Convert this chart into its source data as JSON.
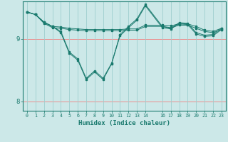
{
  "xlabel": "Humidex (Indice chaleur)",
  "background_color": "#cce8e8",
  "grid_color_h": "#f08080",
  "grid_color_v": "#9ecece",
  "line_color": "#1a7a6e",
  "xlim": [
    -0.5,
    23.5
  ],
  "ylim": [
    7.85,
    9.6
  ],
  "xtick_vals": [
    0,
    1,
    2,
    3,
    4,
    5,
    6,
    7,
    8,
    9,
    10,
    11,
    12,
    13,
    14,
    16,
    17,
    18,
    19,
    20,
    21,
    22,
    23
  ],
  "ytick_vals": [
    8,
    9
  ],
  "line1_x": [
    0,
    1,
    2,
    3,
    4,
    5,
    6,
    7,
    8,
    9,
    10,
    11,
    12,
    13,
    14,
    16,
    17,
    18,
    19,
    20,
    21,
    22,
    23
  ],
  "line1_y": [
    9.43,
    9.39,
    9.25,
    9.18,
    9.17,
    9.15,
    9.14,
    9.13,
    9.13,
    9.13,
    9.13,
    9.13,
    9.14,
    9.14,
    9.2,
    9.2,
    9.18,
    9.22,
    9.22,
    9.17,
    9.12,
    9.1,
    9.15
  ],
  "line2_x": [
    0,
    1,
    2,
    3,
    4,
    5,
    6,
    7,
    8,
    9,
    10,
    11,
    12,
    13,
    14,
    16,
    17,
    18,
    19,
    20,
    21,
    22,
    23
  ],
  "line2_y": [
    9.43,
    9.39,
    9.26,
    9.2,
    9.19,
    9.17,
    9.16,
    9.15,
    9.15,
    9.15,
    9.15,
    9.15,
    9.16,
    9.16,
    9.22,
    9.22,
    9.21,
    9.24,
    9.24,
    9.2,
    9.14,
    9.12,
    9.17
  ],
  "line3_x": [
    0,
    1,
    2,
    3,
    4,
    5,
    6,
    7,
    8,
    9,
    10,
    11,
    12,
    13,
    14,
    16,
    17,
    18,
    19,
    20,
    21,
    22,
    23
  ],
  "line3_y": [
    9.43,
    9.39,
    9.27,
    9.2,
    9.1,
    8.77,
    8.66,
    8.35,
    8.47,
    8.35,
    8.6,
    9.05,
    9.18,
    9.3,
    9.53,
    9.18,
    9.16,
    9.24,
    9.23,
    9.08,
    9.04,
    9.05,
    9.15
  ],
  "line4_x": [
    0,
    1,
    2,
    3,
    4,
    5,
    6,
    7,
    8,
    9,
    10,
    11,
    12,
    13,
    14,
    16,
    17,
    18,
    19,
    20,
    21,
    22,
    23
  ],
  "line4_y": [
    9.43,
    9.39,
    9.27,
    9.2,
    9.12,
    8.79,
    8.68,
    8.37,
    8.49,
    8.37,
    8.61,
    9.07,
    9.2,
    9.32,
    9.55,
    9.2,
    9.17,
    9.26,
    9.25,
    9.1,
    9.06,
    9.07,
    9.17
  ]
}
